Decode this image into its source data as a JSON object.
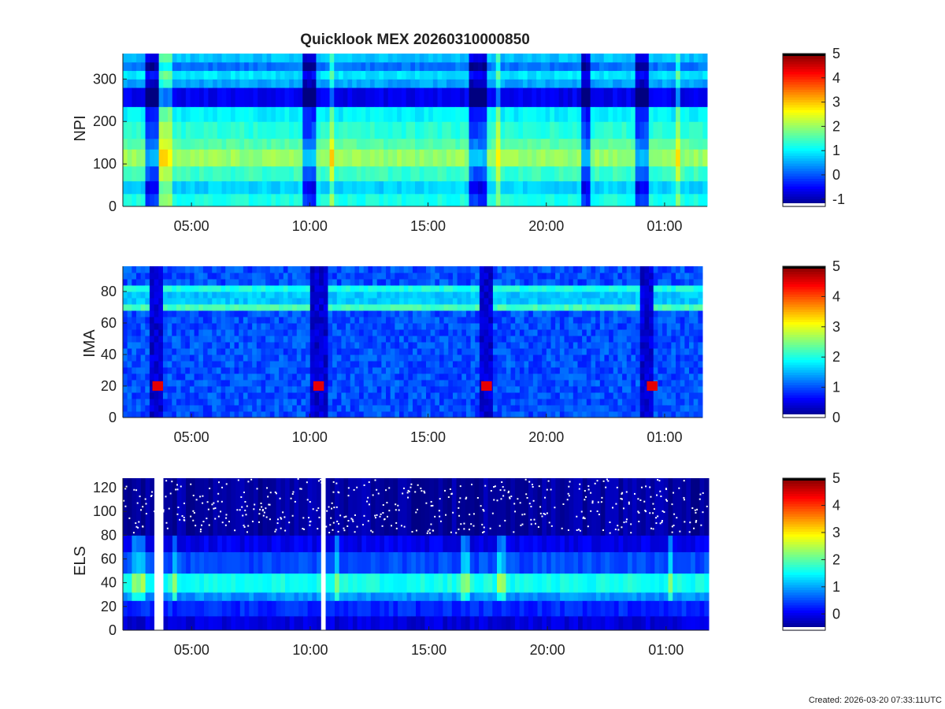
{
  "figure": {
    "title": "Quicklook MEX 20260310000850",
    "footer": "Created: 2026-03-20 07:33:11UTC"
  },
  "chart_data": [
    {
      "type": "heatmap",
      "ylabel": "NPI",
      "ylim": [
        0,
        360
      ],
      "yticks": [
        0,
        100,
        200,
        300
      ],
      "ytick_labels": [
        "0",
        "100",
        "200",
        "300"
      ],
      "xlim_hours": [
        2.1,
        26.8
      ],
      "xtick_hours": [
        5,
        10,
        15,
        20,
        25
      ],
      "xtick_labels": [
        "05:00",
        "10:00",
        "15:00",
        "20:00",
        "01:00"
      ],
      "colorbar": {
        "range": [
          -1.3,
          5
        ],
        "ticks": [
          -1,
          0,
          1,
          2,
          3,
          4,
          5
        ],
        "labels": [
          "-1",
          "0",
          "1",
          "2",
          "3",
          "4",
          "5"
        ]
      },
      "bands": [
        {
          "y": [
            0,
            30
          ],
          "value": 1.2
        },
        {
          "y": [
            30,
            60
          ],
          "value": 0.8
        },
        {
          "y": [
            60,
            95
          ],
          "value": 1.4
        },
        {
          "y": [
            95,
            135
          ],
          "value": 2.0
        },
        {
          "y": [
            135,
            160
          ],
          "value": 1.6
        },
        {
          "y": [
            160,
            200
          ],
          "value": 1.3
        },
        {
          "y": [
            200,
            235
          ],
          "value": 1.0
        },
        {
          "y": [
            235,
            280
          ],
          "value": -0.6
        },
        {
          "y": [
            280,
            300
          ],
          "value": 0.5
        },
        {
          "y": [
            300,
            320
          ],
          "value": 0.9
        },
        {
          "y": [
            320,
            340
          ],
          "value": 0.2
        },
        {
          "y": [
            340,
            360
          ],
          "value": 0.7
        }
      ],
      "dark_intervals_hours": [
        [
          3.0,
          3.7
        ],
        [
          9.7,
          10.3
        ],
        [
          16.8,
          17.5
        ],
        [
          21.4,
          21.9
        ],
        [
          23.7,
          24.3
        ]
      ],
      "bright_intervals_hours": [
        [
          3.7,
          4.1
        ],
        [
          10.8,
          11.1
        ],
        [
          17.9,
          18.1
        ],
        [
          25.5,
          25.7
        ]
      ]
    },
    {
      "type": "heatmap",
      "ylabel": "IMA",
      "ylim": [
        0,
        96
      ],
      "yticks": [
        0,
        20,
        40,
        60,
        80
      ],
      "ytick_labels": [
        "0",
        "20",
        "40",
        "60",
        "80"
      ],
      "xlim_hours": [
        2.1,
        26.6
      ],
      "xtick_hours": [
        5,
        10,
        15,
        20,
        25
      ],
      "xtick_labels": [
        "05:00",
        "10:00",
        "15:00",
        "20:00",
        "01:00"
      ],
      "colorbar": {
        "range": [
          0,
          5
        ],
        "ticks": [
          0,
          1,
          2,
          3,
          4,
          5
        ],
        "labels": [
          "0",
          "1",
          "2",
          "3",
          "4",
          "5"
        ]
      },
      "background_value": 1.0,
      "bands": [
        {
          "y": [
            69,
            74
          ],
          "value": 2.2
        },
        {
          "y": [
            74,
            79
          ],
          "value": 1.6
        },
        {
          "y": [
            79,
            83
          ],
          "value": 2.0
        }
      ],
      "gap_intervals_hours": [
        [
          3.2,
          3.8
        ],
        [
          10.0,
          10.7
        ],
        [
          17.1,
          17.7
        ],
        [
          24.0,
          24.6
        ]
      ],
      "peak_hours": [
        3.6,
        10.4,
        17.5,
        24.5
      ],
      "peak_y": 20,
      "peak_value": 4.5
    },
    {
      "type": "heatmap",
      "ylabel": "ELS",
      "ylim": [
        0,
        128
      ],
      "yticks": [
        0,
        20,
        40,
        60,
        80,
        100,
        120
      ],
      "ytick_labels": [
        "0",
        "20",
        "40",
        "60",
        "80",
        "100",
        "120"
      ],
      "xlim_hours": [
        2.1,
        26.8
      ],
      "xtick_hours": [
        5,
        10,
        15,
        20,
        25
      ],
      "xtick_labels": [
        "05:00",
        "10:00",
        "15:00",
        "20:00",
        "01:00"
      ],
      "colorbar": {
        "range": [
          -0.6,
          5
        ],
        "ticks": [
          0,
          1,
          2,
          3,
          4,
          5
        ],
        "labels": [
          "0",
          "1",
          "2",
          "3",
          "4",
          "5"
        ]
      },
      "bands": [
        {
          "y": [
            0,
            12
          ],
          "value": -0.1
        },
        {
          "y": [
            12,
            25
          ],
          "value": 0.3
        },
        {
          "y": [
            25,
            32
          ],
          "value": 0.9
        },
        {
          "y": [
            32,
            48
          ],
          "value": 1.6
        },
        {
          "y": [
            48,
            66
          ],
          "value": 0.5
        },
        {
          "y": [
            66,
            80
          ],
          "value": 0.0
        },
        {
          "y": [
            80,
            128
          ],
          "value": -0.4
        }
      ],
      "white_intervals_hours": [
        [
          3.5,
          3.75
        ],
        [
          10.5,
          10.7
        ]
      ],
      "bright_intervals_hours": [
        [
          2.4,
          3.0
        ],
        [
          4.1,
          4.4
        ],
        [
          11.0,
          11.3
        ],
        [
          16.3,
          16.8
        ],
        [
          17.9,
          18.2
        ],
        [
          25.0,
          25.3
        ]
      ]
    }
  ]
}
